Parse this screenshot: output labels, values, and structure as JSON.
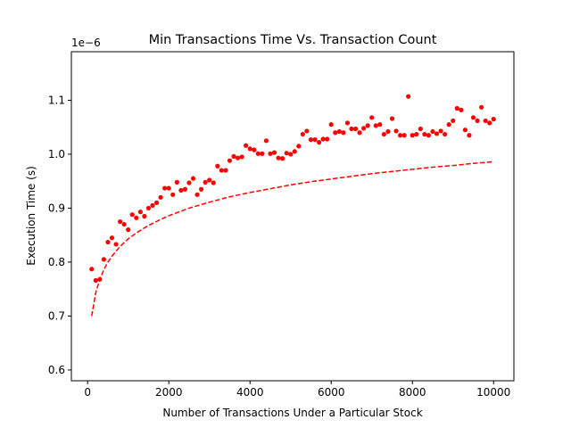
{
  "chart_data": {
    "type": "scatter",
    "title": "Min Transactions Time Vs. Transaction Count",
    "xlabel": "Number of Transactions Under a Particular Stock",
    "ylabel": "Execution Time (s)",
    "y_offset_label": "1e−6",
    "xlim": [
      -400,
      10500
    ],
    "ylim": [
      0.58,
      1.19
    ],
    "x_ticks": [
      0,
      2000,
      4000,
      6000,
      8000,
      10000
    ],
    "x_tick_labels": [
      "0",
      "2000",
      "4000",
      "6000",
      "8000",
      "10000"
    ],
    "y_ticks": [
      0.6,
      0.7,
      0.8,
      0.9,
      1.0,
      1.1
    ],
    "y_tick_labels": [
      "0.6",
      "0.7",
      "0.8",
      "0.9",
      "1.0",
      "1.1"
    ],
    "grid": false,
    "legend": false,
    "colors": {
      "points": "#ff0000",
      "fit": "#ff0000"
    },
    "series": [
      {
        "kind": "points",
        "x": [
          100,
          200,
          300,
          400,
          500,
          600,
          700,
          800,
          900,
          1000,
          1100,
          1200,
          1300,
          1400,
          1500,
          1600,
          1700,
          1800,
          1900,
          2000,
          2100,
          2200,
          2300,
          2400,
          2500,
          2600,
          2700,
          2800,
          2900,
          3000,
          3100,
          3200,
          3300,
          3400,
          3500,
          3600,
          3700,
          3800,
          3900,
          4000,
          4100,
          4200,
          4300,
          4400,
          4500,
          4600,
          4700,
          4800,
          4900,
          5000,
          5100,
          5200,
          5300,
          5400,
          5500,
          5600,
          5700,
          5800,
          5900,
          6000,
          6100,
          6200,
          6300,
          6400,
          6500,
          6600,
          6700,
          6800,
          6900,
          7000,
          7100,
          7200,
          7300,
          7400,
          7500,
          7600,
          7700,
          7800,
          7900,
          8000,
          8100,
          8200,
          8300,
          8400,
          8500,
          8600,
          8700,
          8800,
          8900,
          9000,
          9100,
          9200,
          9300,
          9400,
          9500,
          9600,
          9700,
          9800,
          9900,
          10000
        ],
        "y": [
          0.787,
          0.766,
          0.768,
          0.805,
          0.837,
          0.845,
          0.833,
          0.875,
          0.87,
          0.86,
          0.888,
          0.882,
          0.893,
          0.885,
          0.9,
          0.905,
          0.91,
          0.92,
          0.937,
          0.937,
          0.925,
          0.948,
          0.933,
          0.935,
          0.947,
          0.955,
          0.925,
          0.935,
          0.948,
          0.952,
          0.947,
          0.978,
          0.97,
          0.97,
          0.988,
          0.996,
          0.993,
          0.995,
          1.016,
          1.01,
          1.008,
          1.001,
          1.001,
          1.025,
          1.001,
          1.003,
          0.993,
          0.992,
          1.002,
          1.0,
          1.005,
          1.015,
          1.037,
          1.043,
          1.027,
          1.027,
          1.022,
          1.028,
          1.028,
          1.055,
          1.04,
          1.042,
          1.04,
          1.058,
          1.047,
          1.047,
          1.04,
          1.048,
          1.053,
          1.068,
          1.053,
          1.055,
          1.037,
          1.042,
          1.066,
          1.043,
          1.035,
          1.035,
          1.107,
          1.035,
          1.037,
          1.047,
          1.037,
          1.035,
          1.042,
          1.038,
          1.043,
          1.037,
          1.055,
          1.062,
          1.085,
          1.082,
          1.045,
          1.035,
          1.068,
          1.062,
          1.087,
          1.062,
          1.058,
          1.065
        ]
      },
      {
        "kind": "fit",
        "style": "dashed",
        "x": [
          100,
          200,
          300,
          400,
          500,
          600,
          800,
          1000,
          1200,
          1500,
          1800,
          2000,
          2500,
          3000,
          3500,
          4000,
          4500,
          5000,
          5500,
          6000,
          6500,
          7000,
          7500,
          8000,
          8500,
          9000,
          9500,
          10000
        ],
        "y": [
          0.7,
          0.743,
          0.768,
          0.786,
          0.8,
          0.811,
          0.829,
          0.843,
          0.854,
          0.868,
          0.879,
          0.886,
          0.9,
          0.911,
          0.921,
          0.929,
          0.936,
          0.943,
          0.949,
          0.954,
          0.959,
          0.964,
          0.968,
          0.972,
          0.976,
          0.979,
          0.983,
          0.986
        ]
      }
    ]
  }
}
